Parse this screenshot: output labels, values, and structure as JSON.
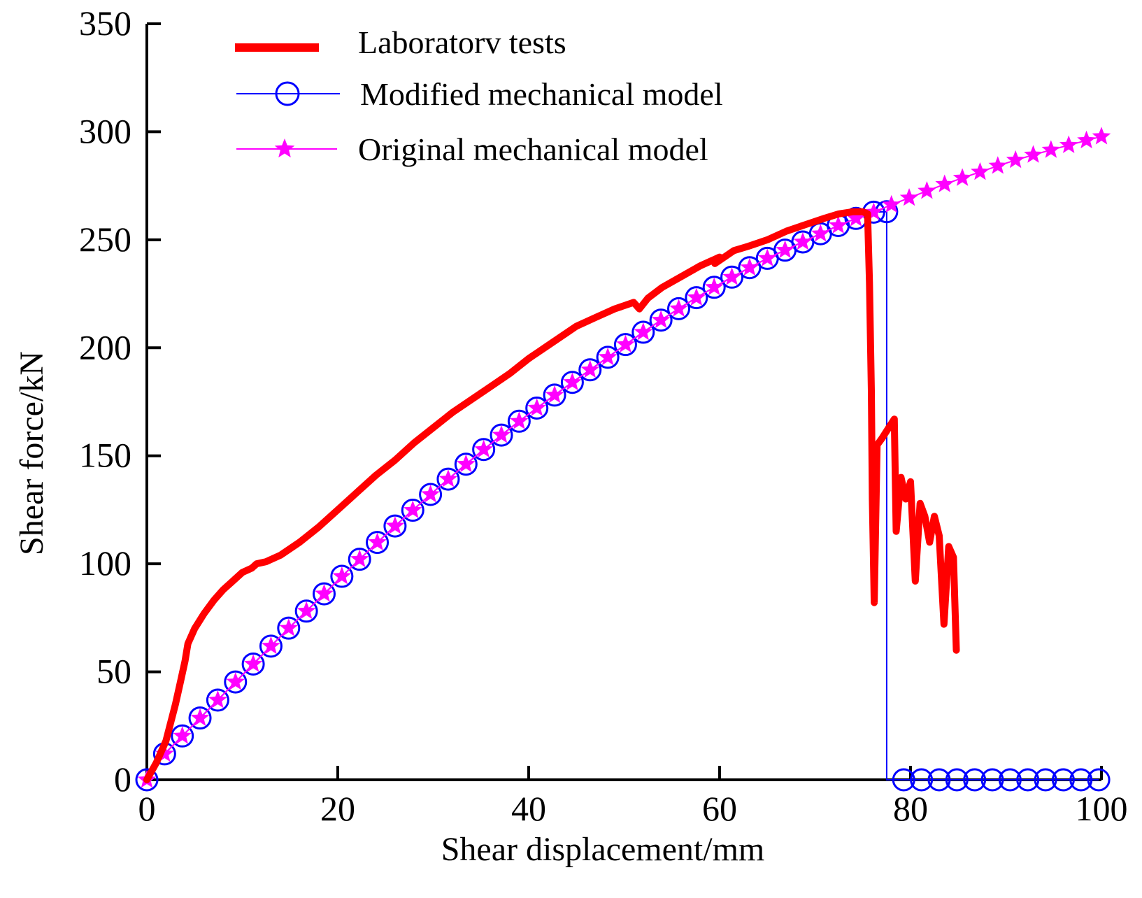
{
  "chart_data": {
    "type": "line",
    "title": "",
    "xlabel": "Shear displacement/mm",
    "ylabel": "Shear force/kN",
    "xlim": [
      0,
      100
    ],
    "ylim": [
      0,
      350
    ],
    "xticks": [
      0,
      20,
      40,
      60,
      80,
      100
    ],
    "yticks": [
      0,
      50,
      100,
      150,
      200,
      250,
      300,
      350
    ],
    "xtick_labels": [
      "0",
      "20",
      "40",
      "60",
      "80",
      "100"
    ],
    "ytick_labels": [
      "0",
      "50",
      "100",
      "150",
      "200",
      "250",
      "300",
      "350"
    ],
    "legend_position": "top-left",
    "grid": false,
    "series": [
      {
        "name": "Laboratorv tests",
        "color": "#ff0000",
        "style": "thick-line",
        "points": [
          [
            0,
            0
          ],
          [
            1,
            8
          ],
          [
            2,
            18
          ],
          [
            3,
            35
          ],
          [
            3.5,
            45
          ],
          [
            4,
            55
          ],
          [
            4.3,
            63
          ],
          [
            5,
            70
          ],
          [
            6,
            77
          ],
          [
            7,
            83
          ],
          [
            8,
            88
          ],
          [
            9,
            92
          ],
          [
            10,
            96
          ],
          [
            11,
            98
          ],
          [
            11.5,
            100
          ],
          [
            12.5,
            101
          ],
          [
            14,
            104
          ],
          [
            16,
            110
          ],
          [
            18,
            117
          ],
          [
            20,
            125
          ],
          [
            22,
            133
          ],
          [
            24,
            141
          ],
          [
            26,
            148
          ],
          [
            28,
            156
          ],
          [
            30,
            163
          ],
          [
            32,
            170
          ],
          [
            34,
            176
          ],
          [
            36,
            182
          ],
          [
            38,
            188
          ],
          [
            40,
            195
          ],
          [
            42,
            201
          ],
          [
            44,
            207
          ],
          [
            45,
            210
          ],
          [
            47,
            214
          ],
          [
            49,
            218
          ],
          [
            51,
            221
          ],
          [
            51.6,
            218
          ],
          [
            52.5,
            223
          ],
          [
            54,
            228
          ],
          [
            56,
            233
          ],
          [
            58,
            238
          ],
          [
            60,
            242
          ],
          [
            59.5,
            239
          ],
          [
            60.5,
            242
          ],
          [
            61.5,
            245
          ],
          [
            63,
            247
          ],
          [
            65,
            250
          ],
          [
            67,
            254
          ],
          [
            69,
            257
          ],
          [
            71,
            260
          ],
          [
            72.5,
            262
          ],
          [
            74,
            263
          ],
          [
            75,
            263
          ],
          [
            75.5,
            262
          ],
          [
            75.7,
            230
          ],
          [
            75.9,
            180
          ],
          [
            76,
            130
          ],
          [
            76.2,
            82
          ],
          [
            76.5,
            155
          ],
          [
            77,
            158
          ],
          [
            78.3,
            167
          ],
          [
            78.5,
            115
          ],
          [
            79,
            140
          ],
          [
            79.5,
            130
          ],
          [
            80,
            138
          ],
          [
            80.5,
            92
          ],
          [
            81,
            128
          ],
          [
            81.5,
            122
          ],
          [
            82,
            110
          ],
          [
            82.5,
            122
          ],
          [
            83,
            113
          ],
          [
            83.5,
            72
          ],
          [
            84,
            108
          ],
          [
            84.5,
            103
          ],
          [
            84.8,
            60
          ]
        ]
      },
      {
        "name": "Modified mechanical model",
        "color": "#0000ff",
        "style": "line-circle",
        "points": [
          [
            0,
            0
          ],
          [
            1.857,
            12.0
          ],
          [
            3.714,
            20.3
          ],
          [
            5.571,
            28.6
          ],
          [
            7.429,
            36.9
          ],
          [
            9.286,
            45.3
          ],
          [
            11.143,
            53.6
          ],
          [
            13,
            61.9
          ],
          [
            14.857,
            70.2
          ],
          [
            16.714,
            78.1
          ],
          [
            18.571,
            86.1
          ],
          [
            20.429,
            94.2
          ],
          [
            22.286,
            102.1
          ],
          [
            24.143,
            109.9
          ],
          [
            26,
            117.5
          ],
          [
            27.857,
            124.8
          ],
          [
            29.714,
            132.1
          ],
          [
            31.571,
            139.2
          ],
          [
            33.429,
            146.1
          ],
          [
            35.286,
            152.9
          ],
          [
            37.143,
            159.6
          ],
          [
            39,
            166.0
          ],
          [
            40.857,
            172.1
          ],
          [
            42.714,
            178.1
          ],
          [
            44.571,
            184.0
          ],
          [
            46.429,
            189.8
          ],
          [
            48.286,
            195.6
          ],
          [
            50.143,
            201.5
          ],
          [
            52,
            207.2
          ],
          [
            53.857,
            212.8
          ],
          [
            55.714,
            218.1
          ],
          [
            57.571,
            223.2
          ],
          [
            59.429,
            228.0
          ],
          [
            61.286,
            232.7
          ],
          [
            63.143,
            237.1
          ],
          [
            65,
            241.4
          ],
          [
            66.857,
            245.2
          ],
          [
            68.714,
            249.0
          ],
          [
            70.571,
            252.8
          ],
          [
            72.429,
            256.6
          ],
          [
            74.286,
            259.9
          ],
          [
            76.143,
            262.8
          ],
          [
            77.5,
            263.0
          ],
          [
            77.5,
            0
          ],
          [
            79.286,
            0
          ],
          [
            81.143,
            0
          ],
          [
            83,
            0
          ],
          [
            84.857,
            0
          ],
          [
            86.714,
            0
          ],
          [
            88.571,
            0
          ],
          [
            90.429,
            0
          ],
          [
            92.286,
            0
          ],
          [
            94.143,
            0
          ],
          [
            96,
            0
          ],
          [
            97.857,
            0
          ],
          [
            99.714,
            0
          ]
        ]
      },
      {
        "name": "Original mechanical model",
        "color": "#ff00ff",
        "style": "line-star",
        "points": [
          [
            0,
            0
          ],
          [
            1.857,
            12.0
          ],
          [
            3.714,
            20.3
          ],
          [
            5.571,
            28.6
          ],
          [
            7.429,
            36.9
          ],
          [
            9.286,
            45.3
          ],
          [
            11.143,
            53.6
          ],
          [
            13,
            61.9
          ],
          [
            14.857,
            70.2
          ],
          [
            16.714,
            78.1
          ],
          [
            18.571,
            86.1
          ],
          [
            20.429,
            94.2
          ],
          [
            22.286,
            102.1
          ],
          [
            24.143,
            109.9
          ],
          [
            26,
            117.5
          ],
          [
            27.857,
            124.8
          ],
          [
            29.714,
            132.1
          ],
          [
            31.571,
            139.2
          ],
          [
            33.429,
            146.1
          ],
          [
            35.286,
            152.9
          ],
          [
            37.143,
            159.6
          ],
          [
            39,
            166.0
          ],
          [
            40.857,
            172.1
          ],
          [
            42.714,
            178.1
          ],
          [
            44.571,
            184.0
          ],
          [
            46.429,
            189.8
          ],
          [
            48.286,
            195.6
          ],
          [
            50.143,
            201.5
          ],
          [
            52,
            207.2
          ],
          [
            53.857,
            212.8
          ],
          [
            55.714,
            218.1
          ],
          [
            57.571,
            223.2
          ],
          [
            59.429,
            228.0
          ],
          [
            61.286,
            232.7
          ],
          [
            63.143,
            237.1
          ],
          [
            65,
            241.4
          ],
          [
            66.857,
            245.2
          ],
          [
            68.714,
            249.0
          ],
          [
            70.571,
            252.8
          ],
          [
            72.429,
            256.6
          ],
          [
            74.286,
            259.9
          ],
          [
            76.143,
            262.8
          ],
          [
            78,
            266.2
          ],
          [
            79.857,
            269.4
          ],
          [
            81.714,
            272.6
          ],
          [
            83.571,
            275.7
          ],
          [
            85.429,
            278.6
          ],
          [
            87.286,
            281.4
          ],
          [
            89.143,
            284.2
          ],
          [
            91,
            286.9
          ],
          [
            92.857,
            289.3
          ],
          [
            94.714,
            291.6
          ],
          [
            96.571,
            293.8
          ],
          [
            98.429,
            296.0
          ],
          [
            100,
            297.8
          ]
        ]
      }
    ]
  }
}
